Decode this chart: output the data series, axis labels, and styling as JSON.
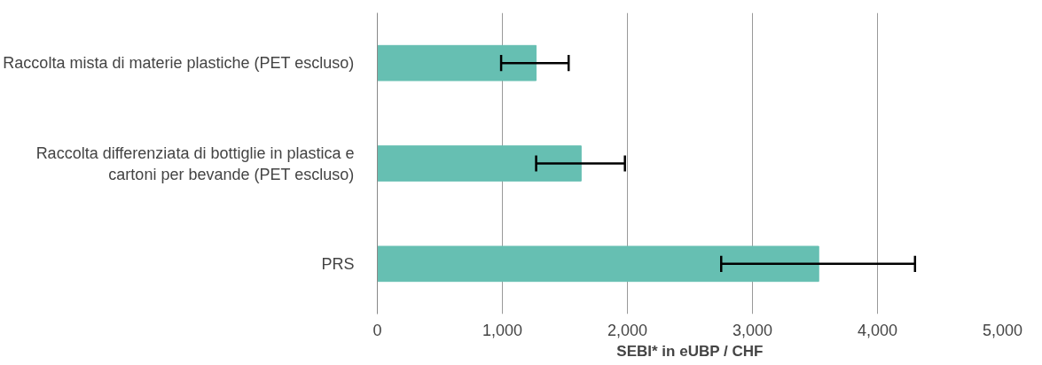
{
  "chart_data": {
    "type": "bar",
    "orientation": "horizontal",
    "categories": [
      "Raccolta mista di materie plastiche (PET escluso)",
      "Raccolta differenziata di bottiglie in plastica e cartoni per bevande (PET escluso)",
      "PRS"
    ],
    "values": [
      1270,
      1630,
      3530
    ],
    "errors": [
      [
        990,
        1530
      ],
      [
        1270,
        1980
      ],
      [
        2750,
        4300
      ]
    ],
    "color": "#66bfb2",
    "xlabel": "SEBI* in eUBP / CHF",
    "xlim": [
      0,
      5000
    ],
    "xticks": [
      {
        "value": 0,
        "label": "0"
      },
      {
        "value": 1000,
        "label": "1,000"
      },
      {
        "value": 2000,
        "label": "2,000"
      },
      {
        "value": 3000,
        "label": "3,000"
      },
      {
        "value": 4000,
        "label": "4,000"
      },
      {
        "value": 5000,
        "label": "5,000"
      }
    ],
    "grid": "x"
  }
}
